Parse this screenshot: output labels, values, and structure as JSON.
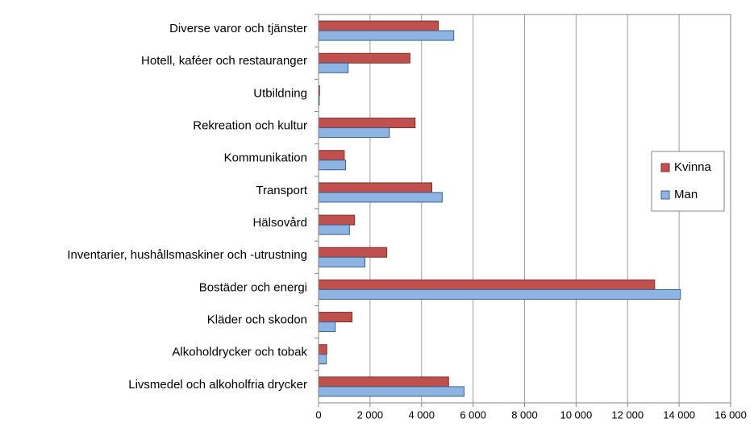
{
  "chart_data": {
    "type": "hbar",
    "categories": [
      "Diverse varor och tjänster",
      "Hotell, kaféer och restauranger",
      "Utbildning",
      "Rekreation och kultur",
      "Kommunikation",
      "Transport",
      "Hälsovård",
      "Inventarier, hushållsmaskiner och -utrustning",
      "Bostäder och energi",
      "Kläder och skodon",
      "Alkoholdrycker och tobak",
      "Livsmedel och alkoholfria drycker"
    ],
    "series": [
      {
        "name": "Kvinna",
        "color": "#c0504d",
        "values": [
          4650,
          3550,
          40,
          3750,
          1000,
          4400,
          1400,
          2650,
          13050,
          1300,
          320,
          5050
        ]
      },
      {
        "name": "Man",
        "color": "#8eb4e3",
        "values": [
          5250,
          1150,
          30,
          2750,
          1050,
          4800,
          1200,
          1800,
          14050,
          650,
          300,
          5650
        ]
      }
    ],
    "xlim": [
      0,
      16000
    ],
    "xticks": [
      0,
      {
        "value": 2000,
        "label": "2 000"
      },
      {
        "value": 4000,
        "label": "4 000"
      },
      {
        "value": 6000,
        "label": "6 000"
      },
      {
        "value": 8000,
        "label": "8 000"
      },
      {
        "value": 10000,
        "label": "10 000"
      },
      {
        "value": 12000,
        "label": "12 000"
      },
      {
        "value": 14000,
        "label": "14 000"
      },
      {
        "value": 16000,
        "label": "16 000"
      }
    ],
    "grid": true,
    "legend": "right"
  }
}
